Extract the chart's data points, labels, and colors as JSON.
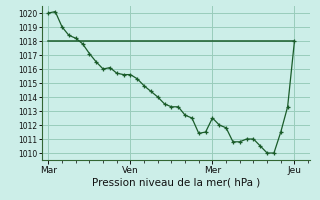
{
  "bg_color": "#cceee8",
  "grid_color": "#99ccbb",
  "line_color": "#1a5c2a",
  "marker_color": "#1a5c2a",
  "xlabel": "Pression niveau de la mer( hPa )",
  "ylim": [
    1009.5,
    1020.5
  ],
  "yticks": [
    1010,
    1011,
    1012,
    1013,
    1014,
    1015,
    1016,
    1017,
    1018,
    1019,
    1020
  ],
  "xtick_labels": [
    "Mar",
    "Ven",
    "Mer",
    "Jeu"
  ],
  "xtick_positions": [
    0,
    36,
    72,
    108
  ],
  "xlim": [
    -3,
    115
  ],
  "flat_line_x": [
    0,
    108
  ],
  "flat_line_y": [
    1018.0,
    1018.0
  ],
  "curve_x": [
    0,
    3,
    6,
    9,
    12,
    15,
    18,
    21,
    24,
    27,
    30,
    33,
    36,
    39,
    42,
    45,
    48,
    51,
    54,
    57,
    60,
    63,
    66,
    69,
    72,
    75,
    78,
    81,
    84,
    87,
    90,
    93,
    96,
    99,
    102,
    105,
    108
  ],
  "curve_y": [
    1020.0,
    1020.1,
    1019.0,
    1018.4,
    1018.2,
    1017.8,
    1017.1,
    1016.5,
    1016.0,
    1016.1,
    1015.7,
    1015.6,
    1015.6,
    1015.3,
    1014.8,
    1014.4,
    1014.0,
    1013.5,
    1013.3,
    1013.3,
    1012.7,
    1012.5,
    1011.4,
    1011.5,
    1012.5,
    1012.0,
    1011.8,
    1010.8,
    1010.8,
    1011.0,
    1011.0,
    1010.5,
    1010.0,
    1010.0,
    1011.5,
    1013.3,
    1018.0
  ],
  "spine_color": "#336633",
  "xlabel_fontsize": 7.5,
  "ytick_fontsize": 5.5,
  "xtick_fontsize": 6.5
}
